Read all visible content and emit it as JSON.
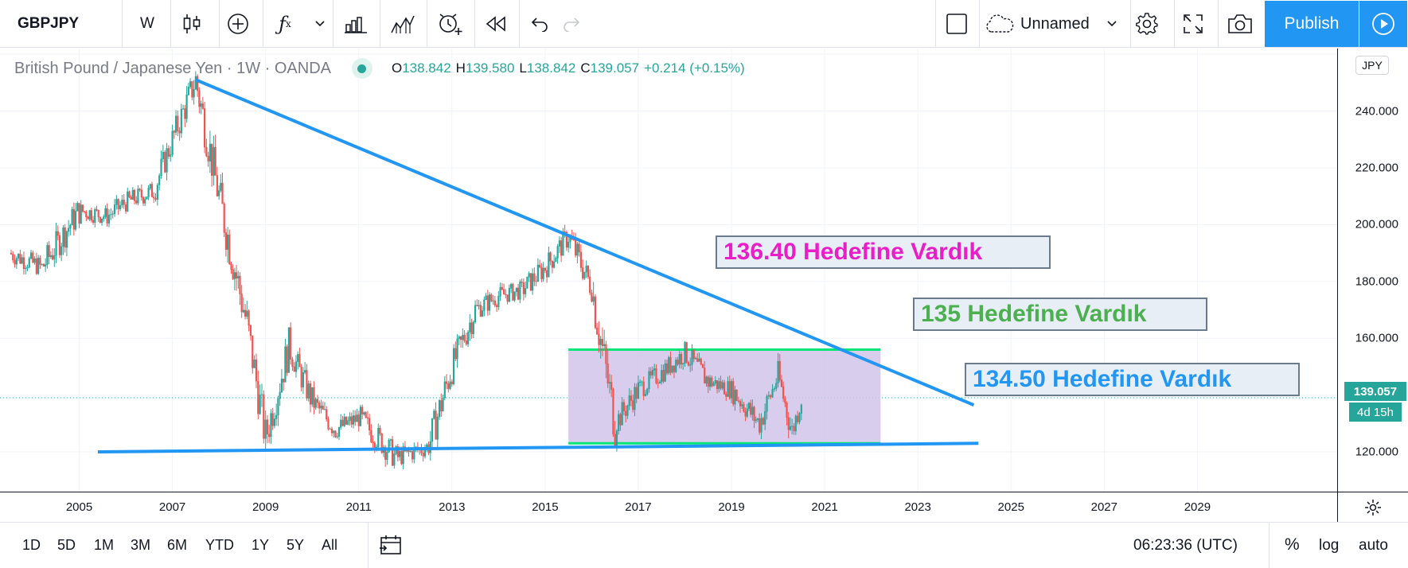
{
  "toolbar": {
    "symbol": "GBPJPY",
    "interval": "W",
    "icons": [
      "candles-icon",
      "add-compare-icon",
      "indicators-icon",
      "dropdown-icon",
      "bar-chart-icon",
      "financials-icon",
      "alert-icon",
      "replay-icon",
      "undo-icon",
      "redo-icon",
      "square-icon",
      "cloud-icon",
      "settings-icon",
      "fullscreen-icon",
      "camera-icon",
      "play-icon"
    ],
    "layout_name": "Unnamed",
    "publish_label": "Publish"
  },
  "legend": {
    "title": "British Pound / Japanese Yen · 1W · OANDA",
    "open_key": "O",
    "open": "138.842",
    "high_key": "H",
    "high": "139.580",
    "low_key": "L",
    "low": "138.842",
    "close_key": "C",
    "close": "139.057",
    "change": "+0.214 (+0.15%)"
  },
  "price_axis": {
    "currency": "JPY",
    "ticks": [
      "240.000",
      "220.000",
      "200.000",
      "180.000",
      "160.000",
      "120.000"
    ],
    "last_price": "139.057",
    "countdown": "4d 15h"
  },
  "time_axis": {
    "ticks": [
      "2005",
      "2007",
      "2009",
      "2011",
      "2013",
      "2015",
      "2017",
      "2019",
      "2021",
      "2023",
      "2025",
      "2027",
      "2029"
    ]
  },
  "annotations": {
    "callout_1": "136.40 Hedefine Vardık",
    "callout_2": "135 Hedefine Vardık",
    "callout_3": "134.50 Hedefine Vardık"
  },
  "bottombar": {
    "ranges": [
      "1D",
      "5D",
      "1M",
      "3M",
      "6M",
      "YTD",
      "1Y",
      "5Y",
      "All"
    ],
    "clock": "06:23:36 (UTC)",
    "percent_label": "%",
    "log_label": "log",
    "auto_label": "auto"
  },
  "chart_data": {
    "type": "line",
    "title": "British Pound / Japanese Yen · 1W · OANDA",
    "x": [
      2003.5,
      2004.2,
      2005.0,
      2005.6,
      2006.0,
      2006.6,
      2007.0,
      2007.5,
      2008.0,
      2008.6,
      2009.0,
      2009.5,
      2010.0,
      2010.5,
      2011.0,
      2011.8,
      2012.5,
      2013.0,
      2013.5,
      2014.0,
      2014.5,
      2015.0,
      2015.5,
      2016.0,
      2016.5,
      2017.0,
      2017.5,
      2018.0,
      2018.5,
      2019.0,
      2019.6,
      2020.0,
      2020.3,
      2020.5
    ],
    "series": [
      {
        "values": [
          190,
          185,
          205,
          203,
          208,
          212,
          230,
          251,
          210,
          165,
          125,
          157,
          138,
          128,
          132,
          118,
          122,
          150,
          170,
          175,
          177,
          185,
          196,
          178,
          130,
          142,
          148,
          155,
          145,
          142,
          130,
          147,
          127,
          139.057
        ]
      }
    ],
    "ylim": [
      106,
      262
    ],
    "xlim": [
      2003.3,
      2032.0
    ],
    "drawings": {
      "resistance_trendline": [
        [
          2007.5,
          251
        ],
        [
          2024.2,
          136.5
        ]
      ],
      "support_trendline": [
        [
          2005.4,
          120
        ],
        [
          2024.3,
          123
        ]
      ],
      "range_box": {
        "x": [
          2015.5,
          2022.2
        ],
        "y": [
          123,
          156
        ]
      }
    }
  },
  "colors": {
    "up": "#26a69a",
    "down": "#ef5350",
    "trendline": "#2196f3",
    "range_box_fill": "#d1c4e9",
    "range_box_edge": "#00e676",
    "accent": "#2196f3"
  }
}
